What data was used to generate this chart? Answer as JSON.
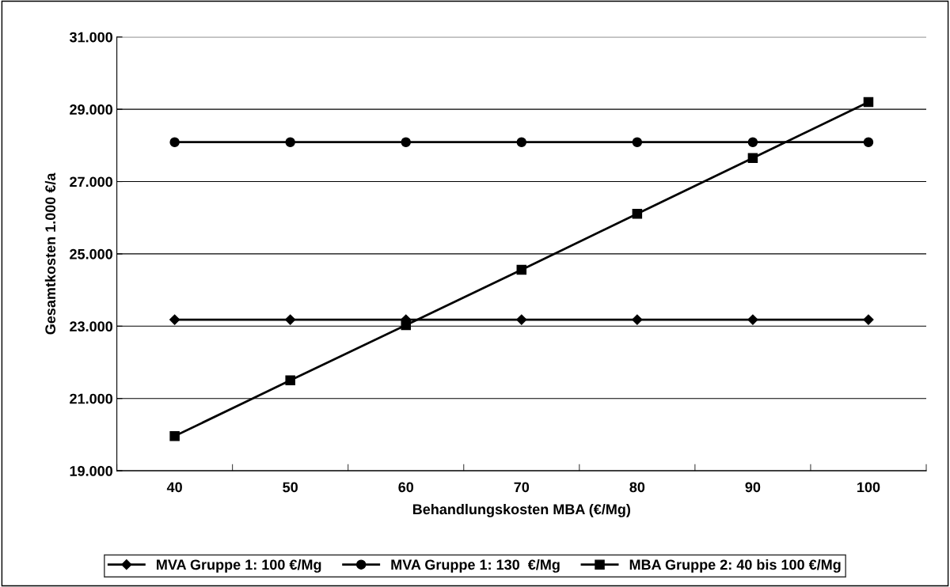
{
  "chart_data": {
    "type": "line",
    "xlabel": "Behandlungskosten MBA (€/Mg)",
    "ylabel": "Gesamtkosten 1.000 €/a",
    "categories": [
      "40",
      "50",
      "60",
      "70",
      "80",
      "90",
      "100"
    ],
    "series": [
      {
        "name": "MVA Gruppe 1: 100 €/Mg",
        "color": "#000000",
        "marker": "diamond",
        "values": [
          23180,
          23180,
          23180,
          23180,
          23180,
          23180,
          23180
        ]
      },
      {
        "name": "MVA Gruppe 1: 130  €/Mg",
        "color": "#000000",
        "marker": "circle",
        "values": [
          28090,
          28090,
          28090,
          28090,
          28090,
          28090,
          28090
        ]
      },
      {
        "name": "MBA Gruppe 2: 40 bis 100 €/Mg",
        "color": "#000000",
        "marker": "square",
        "values": [
          19960,
          21500,
          23030,
          24560,
          26110,
          27650,
          29200
        ]
      }
    ],
    "ylim": [
      19000,
      31000
    ],
    "yticks": [
      {
        "value": 19000,
        "label": "19.000"
      },
      {
        "value": 21000,
        "label": "21.000"
      },
      {
        "value": 23000,
        "label": "23.000"
      },
      {
        "value": 25000,
        "label": "25.000"
      },
      {
        "value": 27000,
        "label": "27.000"
      },
      {
        "value": 29000,
        "label": "29.000"
      },
      {
        "value": 31000,
        "label": "31.000"
      }
    ],
    "grid": "y",
    "legend": "bottom",
    "line_style": "solid"
  }
}
